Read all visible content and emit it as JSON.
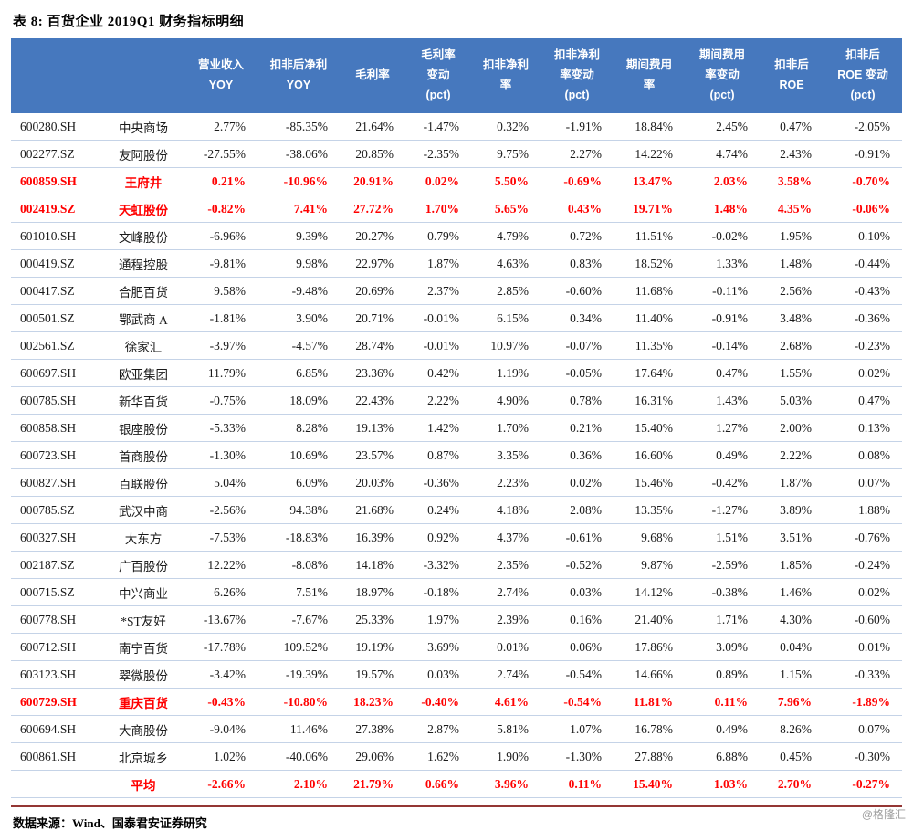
{
  "title": "表 8:  百货企业 2019Q1 财务指标明细",
  "source": "数据来源：Wind、国泰君安证券研究",
  "watermark": "@格隆汇",
  "colors": {
    "header_bg": "#4678BE",
    "highlight_text": "#FF0000",
    "row_border": "#C5D3E7",
    "footer_rule": "#943634"
  },
  "table": {
    "columns": [
      {
        "label": "营业收入\nYOY"
      },
      {
        "label": "扣非后净利\nYOY"
      },
      {
        "label": "毛利率"
      },
      {
        "label": "毛利率\n变动\n(pct)"
      },
      {
        "label": "扣非净利\n率"
      },
      {
        "label": "扣非净利\n率变动\n(pct)"
      },
      {
        "label": "期间费用\n率"
      },
      {
        "label": "期间费用\n率变动\n(pct)"
      },
      {
        "label": "扣非后\nROE"
      },
      {
        "label": "扣非后\nROE 变动\n(pct)"
      }
    ],
    "rows": [
      {
        "code": "600280.SH",
        "name": "中央商场",
        "highlight": false,
        "values": [
          "2.77%",
          "-85.35%",
          "21.64%",
          "-1.47%",
          "0.32%",
          "-1.91%",
          "18.84%",
          "2.45%",
          "0.47%",
          "-2.05%"
        ]
      },
      {
        "code": "002277.SZ",
        "name": "友阿股份",
        "highlight": false,
        "values": [
          "-27.55%",
          "-38.06%",
          "20.85%",
          "-2.35%",
          "9.75%",
          "2.27%",
          "14.22%",
          "4.74%",
          "2.43%",
          "-0.91%"
        ]
      },
      {
        "code": "600859.SH",
        "name": "王府井",
        "highlight": true,
        "values": [
          "0.21%",
          "-10.96%",
          "20.91%",
          "0.02%",
          "5.50%",
          "-0.69%",
          "13.47%",
          "2.03%",
          "3.58%",
          "-0.70%"
        ]
      },
      {
        "code": "002419.SZ",
        "name": "天虹股份",
        "highlight": true,
        "values": [
          "-0.82%",
          "7.41%",
          "27.72%",
          "1.70%",
          "5.65%",
          "0.43%",
          "19.71%",
          "1.48%",
          "4.35%",
          "-0.06%"
        ]
      },
      {
        "code": "601010.SH",
        "name": "文峰股份",
        "highlight": false,
        "values": [
          "-6.96%",
          "9.39%",
          "20.27%",
          "0.79%",
          "4.79%",
          "0.72%",
          "11.51%",
          "-0.02%",
          "1.95%",
          "0.10%"
        ]
      },
      {
        "code": "000419.SZ",
        "name": "通程控股",
        "highlight": false,
        "values": [
          "-9.81%",
          "9.98%",
          "22.97%",
          "1.87%",
          "4.63%",
          "0.83%",
          "18.52%",
          "1.33%",
          "1.48%",
          "-0.44%"
        ]
      },
      {
        "code": "000417.SZ",
        "name": "合肥百货",
        "highlight": false,
        "values": [
          "9.58%",
          "-9.48%",
          "20.69%",
          "2.37%",
          "2.85%",
          "-0.60%",
          "11.68%",
          "-0.11%",
          "2.56%",
          "-0.43%"
        ]
      },
      {
        "code": "000501.SZ",
        "name": "鄂武商 A",
        "highlight": false,
        "values": [
          "-1.81%",
          "3.90%",
          "20.71%",
          "-0.01%",
          "6.15%",
          "0.34%",
          "11.40%",
          "-0.91%",
          "3.48%",
          "-0.36%"
        ]
      },
      {
        "code": "002561.SZ",
        "name": "徐家汇",
        "highlight": false,
        "values": [
          "-3.97%",
          "-4.57%",
          "28.74%",
          "-0.01%",
          "10.97%",
          "-0.07%",
          "11.35%",
          "-0.14%",
          "2.68%",
          "-0.23%"
        ]
      },
      {
        "code": "600697.SH",
        "name": "欧亚集团",
        "highlight": false,
        "values": [
          "11.79%",
          "6.85%",
          "23.36%",
          "0.42%",
          "1.19%",
          "-0.05%",
          "17.64%",
          "0.47%",
          "1.55%",
          "0.02%"
        ]
      },
      {
        "code": "600785.SH",
        "name": "新华百货",
        "highlight": false,
        "values": [
          "-0.75%",
          "18.09%",
          "22.43%",
          "2.22%",
          "4.90%",
          "0.78%",
          "16.31%",
          "1.43%",
          "5.03%",
          "0.47%"
        ]
      },
      {
        "code": "600858.SH",
        "name": "银座股份",
        "highlight": false,
        "values": [
          "-5.33%",
          "8.28%",
          "19.13%",
          "1.42%",
          "1.70%",
          "0.21%",
          "15.40%",
          "1.27%",
          "2.00%",
          "0.13%"
        ]
      },
      {
        "code": "600723.SH",
        "name": "首商股份",
        "highlight": false,
        "values": [
          "-1.30%",
          "10.69%",
          "23.57%",
          "0.87%",
          "3.35%",
          "0.36%",
          "16.60%",
          "0.49%",
          "2.22%",
          "0.08%"
        ]
      },
      {
        "code": "600827.SH",
        "name": "百联股份",
        "highlight": false,
        "values": [
          "5.04%",
          "6.09%",
          "20.03%",
          "-0.36%",
          "2.23%",
          "0.02%",
          "15.46%",
          "-0.42%",
          "1.87%",
          "0.07%"
        ]
      },
      {
        "code": "000785.SZ",
        "name": "武汉中商",
        "highlight": false,
        "values": [
          "-2.56%",
          "94.38%",
          "21.68%",
          "0.24%",
          "4.18%",
          "2.08%",
          "13.35%",
          "-1.27%",
          "3.89%",
          "1.88%"
        ]
      },
      {
        "code": "600327.SH",
        "name": "大东方",
        "highlight": false,
        "values": [
          "-7.53%",
          "-18.83%",
          "16.39%",
          "0.92%",
          "4.37%",
          "-0.61%",
          "9.68%",
          "1.51%",
          "3.51%",
          "-0.76%"
        ]
      },
      {
        "code": "002187.SZ",
        "name": "广百股份",
        "highlight": false,
        "values": [
          "12.22%",
          "-8.08%",
          "14.18%",
          "-3.32%",
          "2.35%",
          "-0.52%",
          "9.87%",
          "-2.59%",
          "1.85%",
          "-0.24%"
        ]
      },
      {
        "code": "000715.SZ",
        "name": "中兴商业",
        "highlight": false,
        "values": [
          "6.26%",
          "7.51%",
          "18.97%",
          "-0.18%",
          "2.74%",
          "0.03%",
          "14.12%",
          "-0.38%",
          "1.46%",
          "0.02%"
        ]
      },
      {
        "code": "600778.SH",
        "name": "*ST友好",
        "highlight": false,
        "values": [
          "-13.67%",
          "-7.67%",
          "25.33%",
          "1.97%",
          "2.39%",
          "0.16%",
          "21.40%",
          "1.71%",
          "4.30%",
          "-0.60%"
        ]
      },
      {
        "code": "600712.SH",
        "name": "南宁百货",
        "highlight": false,
        "values": [
          "-17.78%",
          "109.52%",
          "19.19%",
          "3.69%",
          "0.01%",
          "0.06%",
          "17.86%",
          "3.09%",
          "0.04%",
          "0.01%"
        ]
      },
      {
        "code": "603123.SH",
        "name": "翠微股份",
        "highlight": false,
        "values": [
          "-3.42%",
          "-19.39%",
          "19.57%",
          "0.03%",
          "2.74%",
          "-0.54%",
          "14.66%",
          "0.89%",
          "1.15%",
          "-0.33%"
        ]
      },
      {
        "code": "600729.SH",
        "name": "重庆百货",
        "highlight": true,
        "values": [
          "-0.43%",
          "-10.80%",
          "18.23%",
          "-0.40%",
          "4.61%",
          "-0.54%",
          "11.81%",
          "0.11%",
          "7.96%",
          "-1.89%"
        ]
      },
      {
        "code": "600694.SH",
        "name": "大商股份",
        "highlight": false,
        "values": [
          "-9.04%",
          "11.46%",
          "27.38%",
          "2.87%",
          "5.81%",
          "1.07%",
          "16.78%",
          "0.49%",
          "8.26%",
          "0.07%"
        ]
      },
      {
        "code": "600861.SH",
        "name": "北京城乡",
        "highlight": false,
        "values": [
          "1.02%",
          "-40.06%",
          "29.06%",
          "1.62%",
          "1.90%",
          "-1.30%",
          "27.88%",
          "6.88%",
          "0.45%",
          "-0.30%"
        ]
      },
      {
        "code": "",
        "name": "平均",
        "highlight": true,
        "values": [
          "-2.66%",
          "2.10%",
          "21.79%",
          "0.66%",
          "3.96%",
          "0.11%",
          "15.40%",
          "1.03%",
          "2.70%",
          "-0.27%"
        ]
      }
    ]
  }
}
